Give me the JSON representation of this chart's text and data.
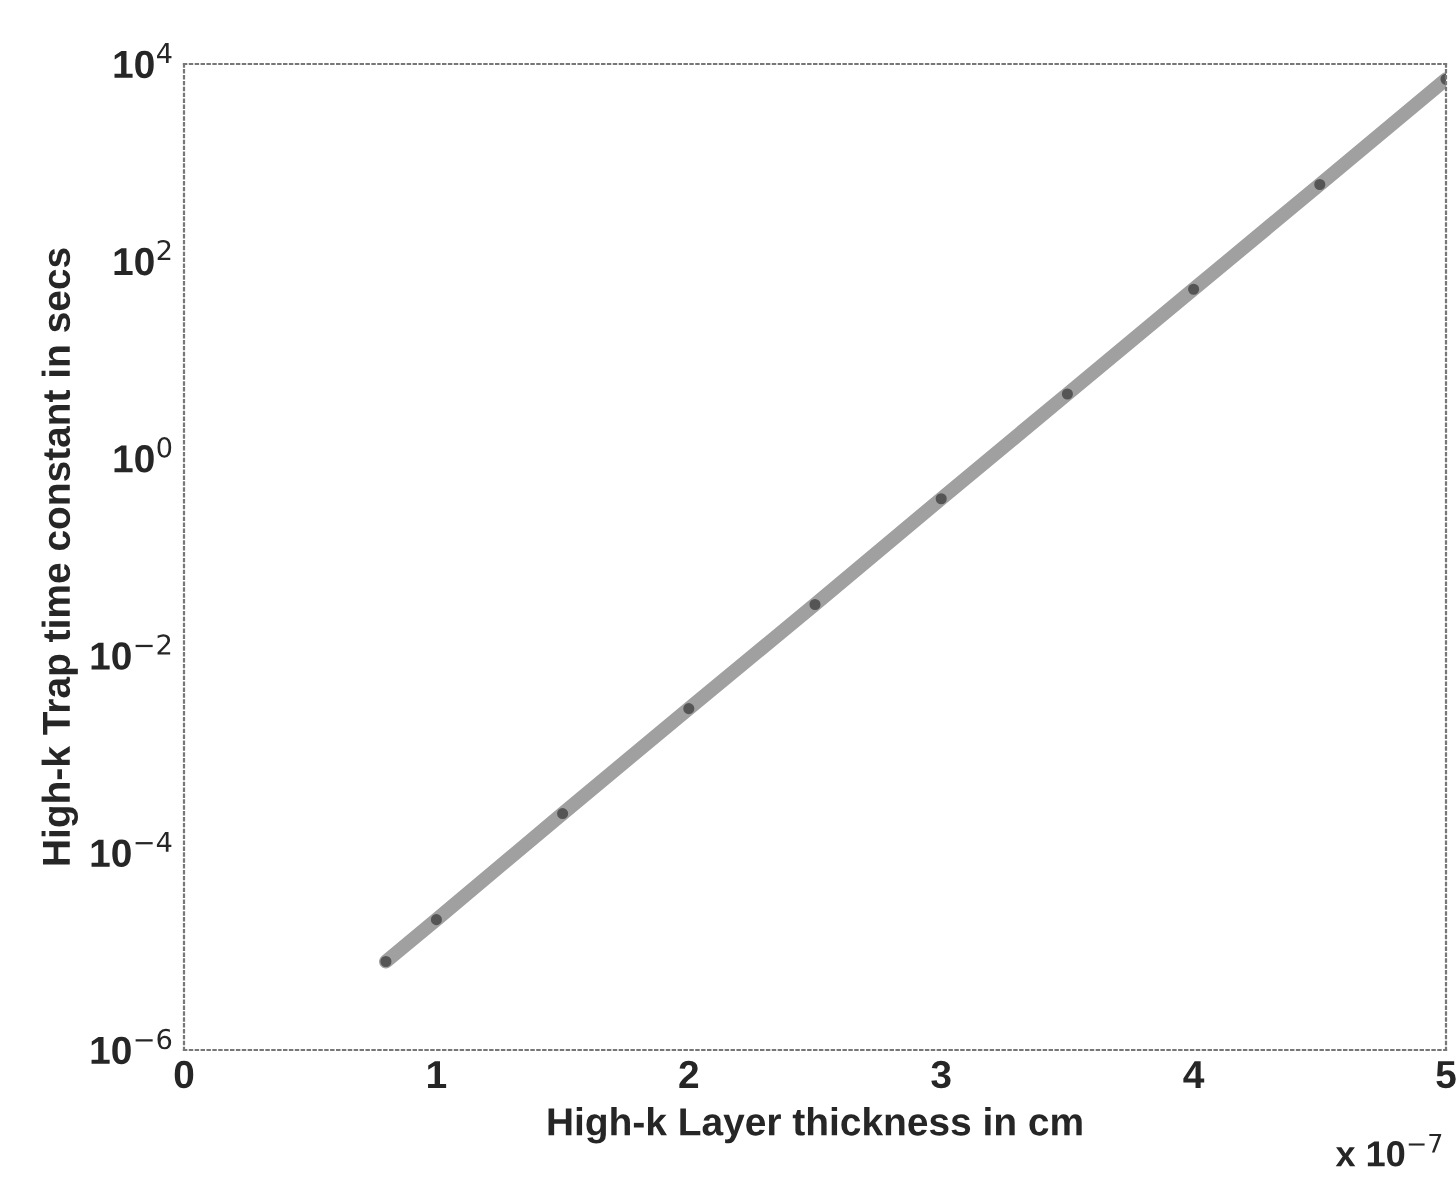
{
  "chart_data": {
    "type": "line",
    "xlabel": "High-k Layer thickness in cm",
    "ylabel": "High-k Trap time constant in secs",
    "x": [
      0.8,
      1,
      1.5,
      2,
      2.5,
      3,
      3.5,
      4,
      4.5,
      5
    ],
    "series": [
      {
        "color": "#a0a0a0",
        "values": [
          7.9e-06,
          2.1e-05,
          0.00025,
          0.0029,
          0.033,
          0.39,
          4.5,
          52,
          600,
          7000
        ]
      }
    ],
    "marker": "circle",
    "log": "y",
    "xlim": [
      0,
      5
    ],
    "xticks": [
      0,
      1,
      2,
      3,
      4,
      5
    ],
    "ylim": [
      1e-06,
      10000.0
    ],
    "yticks": [
      {
        "value": 1e-06,
        "label": "10$^{−6}$"
      },
      {
        "value": 0.0001,
        "label": "10$^{−4}$"
      },
      {
        "value": 0.01,
        "label": "10$^{−2}$"
      },
      {
        "value": 1,
        "label": "10$^{0}$"
      },
      {
        "value": 100,
        "label": "10$^{2}$"
      },
      {
        "value": 10000.0,
        "label": "10$^{4}$"
      }
    ],
    "annotations": [
      "x 10$^{−7}$"
    ]
  }
}
